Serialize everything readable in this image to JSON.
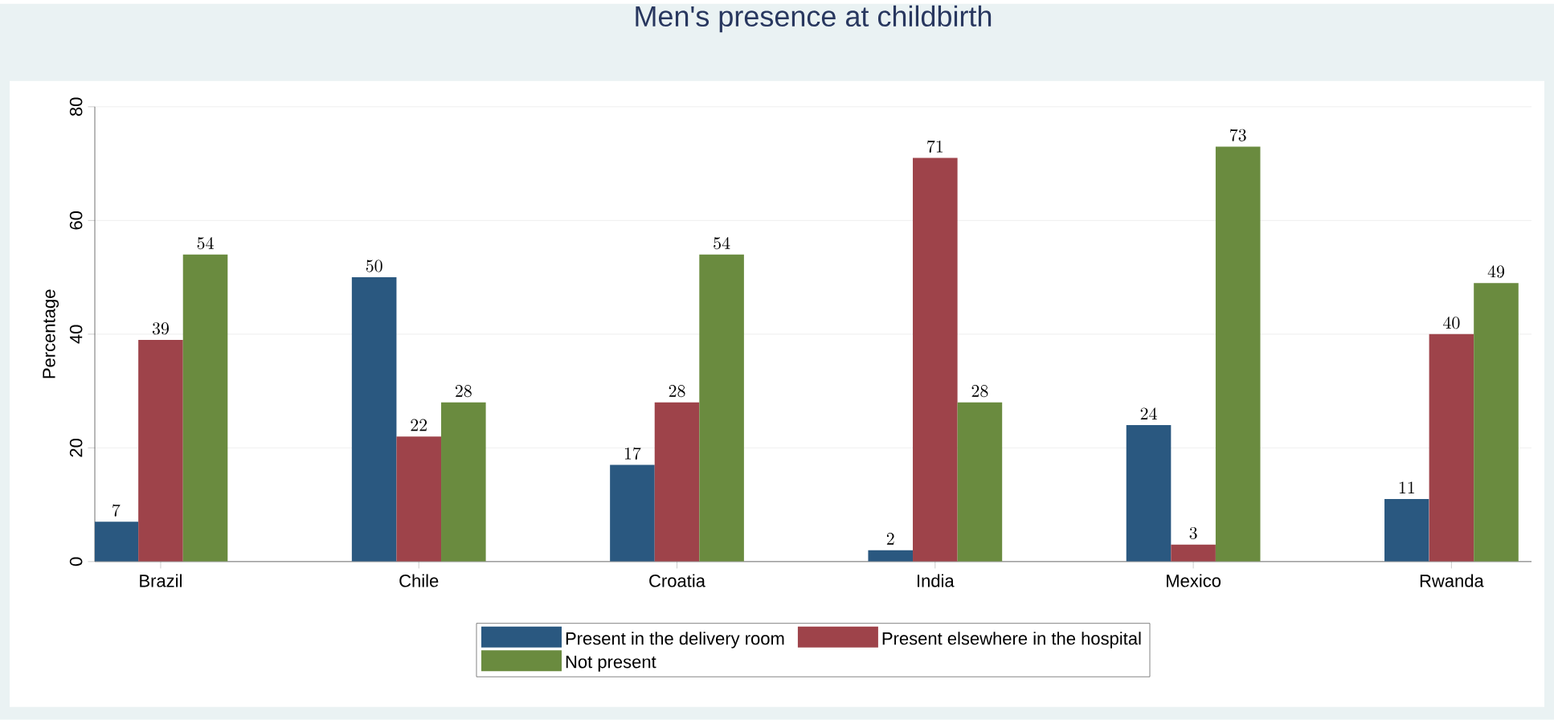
{
  "chart_data": {
    "type": "bar",
    "title": "Men's presence at childbirth",
    "ylabel": "Percentage",
    "categories": [
      "Brazil",
      "Chile",
      "Croatia",
      "India",
      "Mexico",
      "Rwanda"
    ],
    "series": [
      {
        "name": "Present in the delivery room",
        "color": "#2a5880",
        "values": [
          7,
          50,
          17,
          2,
          24,
          11
        ]
      },
      {
        "name": "Present elsewhere in the hospital",
        "color": "#9e434a",
        "values": [
          39,
          22,
          28,
          71,
          3,
          40
        ]
      },
      {
        "name": "Not present",
        "color": "#6a8b3f",
        "values": [
          54,
          28,
          54,
          28,
          73,
          49
        ]
      }
    ],
    "ylim": [
      0,
      80
    ],
    "yticks": [
      0,
      20,
      40,
      60,
      80
    ],
    "grid": "y",
    "legend": "bottom",
    "data_labels": true
  }
}
